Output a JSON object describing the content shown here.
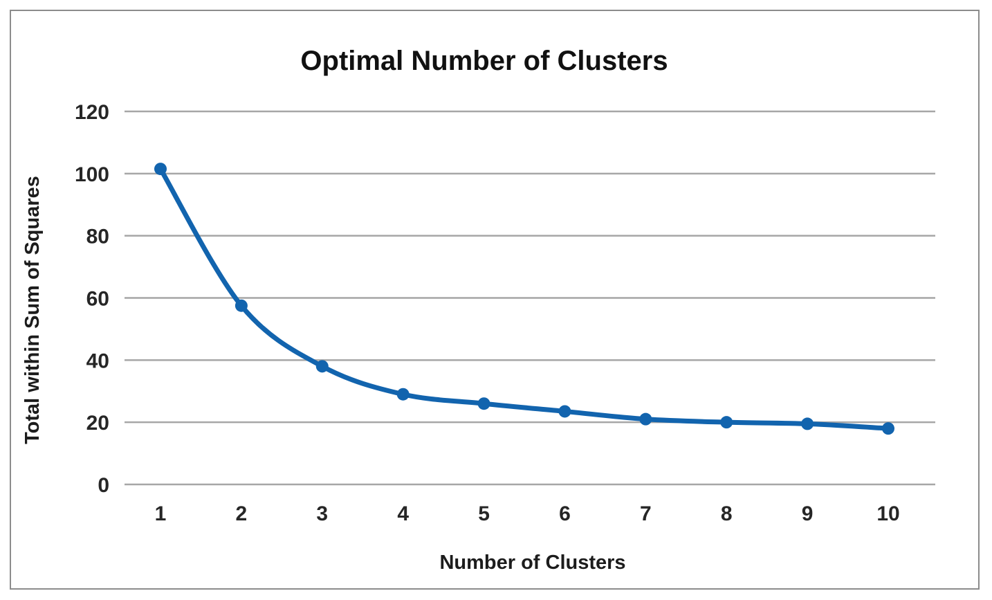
{
  "chart_data": {
    "type": "line",
    "title": "Optimal Number of Clusters",
    "xlabel": "Number of Clusters",
    "ylabel": "Total within Sum of Squares",
    "categories": [
      "1",
      "2",
      "3",
      "4",
      "5",
      "6",
      "7",
      "8",
      "9",
      "10"
    ],
    "x": [
      1,
      2,
      3,
      4,
      5,
      6,
      7,
      8,
      9,
      10
    ],
    "series": [
      {
        "values": [
          101.5,
          57.5,
          38,
          29,
          26,
          23.5,
          21,
          20,
          19.5,
          18
        ]
      }
    ],
    "ylim": [
      0,
      120
    ],
    "yticks": [
      "0",
      "20",
      "40",
      "60",
      "80",
      "100",
      "120"
    ],
    "grid": true,
    "smooth": true,
    "markers": true,
    "legend": "none",
    "colors": {
      "series": "#1264ae",
      "grid": "#a6a6a6",
      "border": "#8c8c8c"
    }
  }
}
